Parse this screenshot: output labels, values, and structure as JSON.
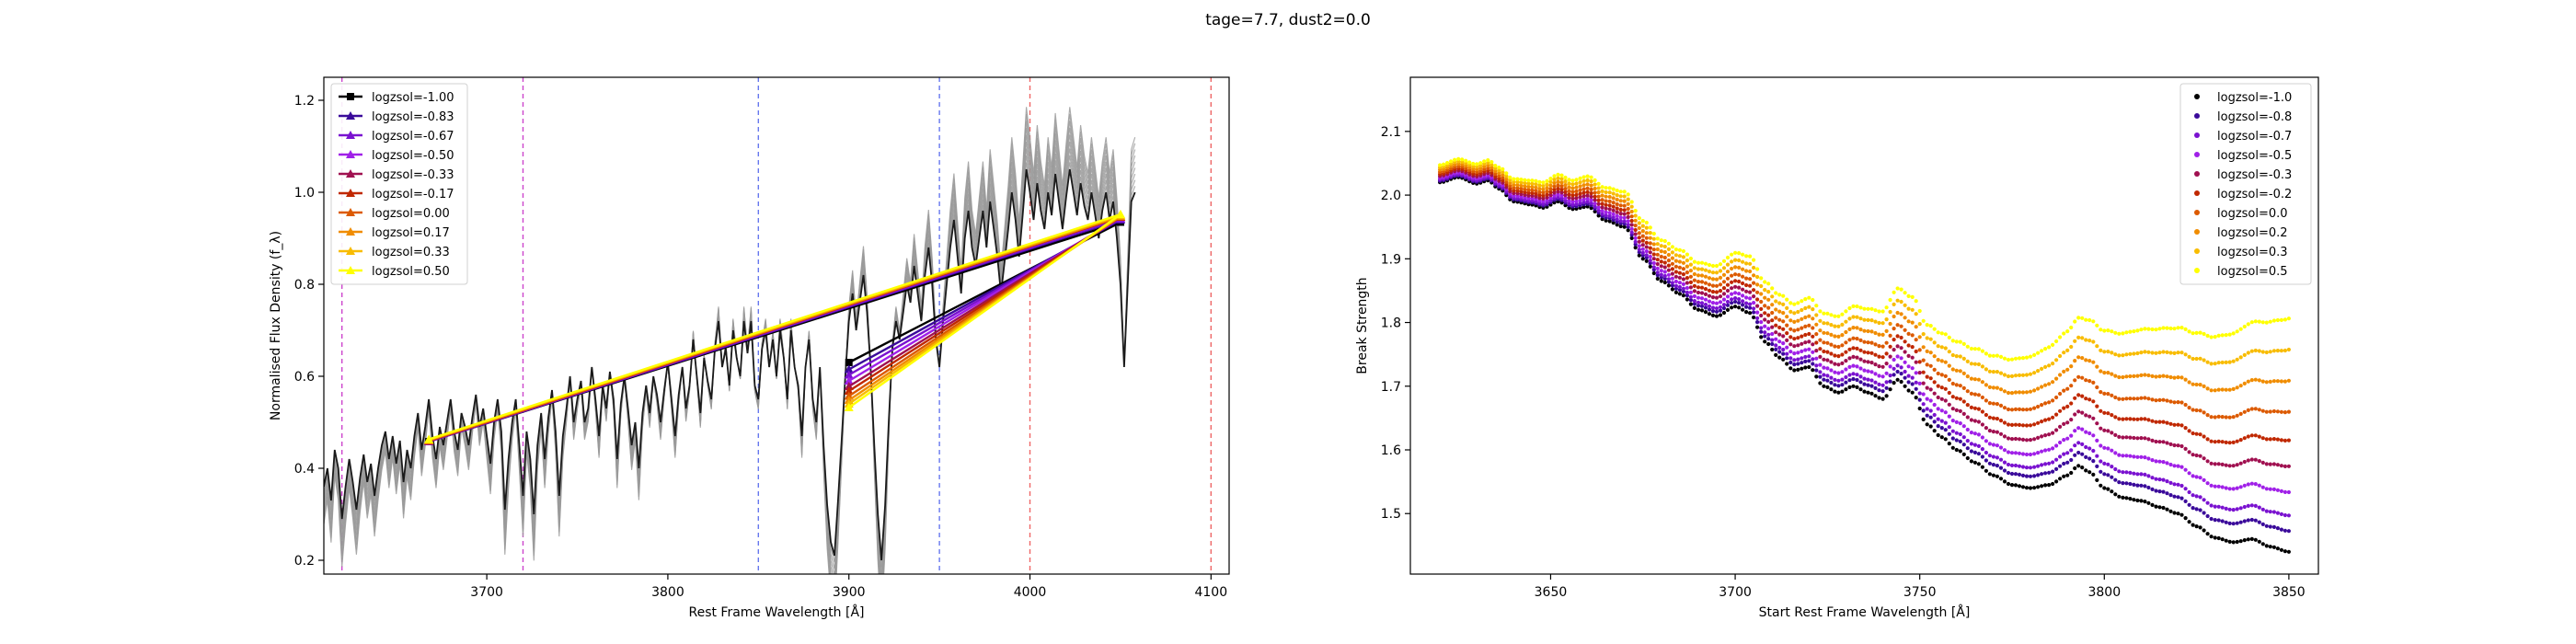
{
  "figure": {
    "suptitle": "tage=7.7, dust2=0.0"
  },
  "chart_data": [
    {
      "type": "line",
      "xlabel": "Rest Frame Wavelength [Å]",
      "ylabel": "Normalised Flux Density (f_λ)",
      "xlim": [
        3610,
        4110
      ],
      "ylim": [
        0.17,
        1.25
      ],
      "xticks": [
        3700,
        3800,
        3900,
        4000,
        4100
      ],
      "yticks": [
        0.2,
        0.4,
        0.6,
        0.8,
        1.0,
        1.2
      ],
      "grid": false,
      "legend_position": "top-left",
      "vlines": [
        {
          "x": 3620,
          "color": "#cc44cc"
        },
        {
          "x": 3720,
          "color": "#cc44cc"
        },
        {
          "x": 3850,
          "color": "#6677ee"
        },
        {
          "x": 3950,
          "color": "#6677ee"
        },
        {
          "x": 4000,
          "color": "#ee6666"
        },
        {
          "x": 4100,
          "color": "#ee6666"
        }
      ],
      "series": [
        {
          "name": "logzsol=-1.00",
          "color": "#000000",
          "marker": "square",
          "segments": [
            [
              [
                3668,
                0.458
              ],
              [
                4050,
                0.935
              ]
            ],
            [
              [
                3900,
                0.63
              ],
              [
                4050,
                0.935
              ]
            ]
          ]
        },
        {
          "name": "logzsol=-0.83",
          "color": "#3a0a9a",
          "marker": "triangle",
          "segments": [
            [
              [
                3668,
                0.458
              ],
              [
                4050,
                0.94
              ]
            ],
            [
              [
                3900,
                0.615
              ],
              [
                4050,
                0.94
              ]
            ]
          ]
        },
        {
          "name": "logzsol=-0.67",
          "color": "#7a12d0",
          "marker": "triangle",
          "segments": [
            [
              [
                3668,
                0.458
              ],
              [
                4050,
                0.942
              ]
            ],
            [
              [
                3900,
                0.603
              ],
              [
                4050,
                0.942
              ]
            ]
          ]
        },
        {
          "name": "logzsol=-0.50",
          "color": "#a020e8",
          "marker": "triangle",
          "segments": [
            [
              [
                3668,
                0.459
              ],
              [
                4050,
                0.945
              ]
            ],
            [
              [
                3900,
                0.59
              ],
              [
                4050,
                0.945
              ]
            ]
          ]
        },
        {
          "name": "logzsol=-0.33",
          "color": "#a01050",
          "marker": "triangle",
          "segments": [
            [
              [
                3668,
                0.459
              ],
              [
                4050,
                0.946
              ]
            ],
            [
              [
                3900,
                0.578
              ],
              [
                4050,
                0.946
              ]
            ]
          ]
        },
        {
          "name": "logzsol=-0.17",
          "color": "#c02800",
          "marker": "triangle",
          "segments": [
            [
              [
                3668,
                0.46
              ],
              [
                4050,
                0.946
              ]
            ],
            [
              [
                3900,
                0.568
              ],
              [
                4050,
                0.946
              ]
            ]
          ]
        },
        {
          "name": "logzsol=0.00",
          "color": "#dc5a00",
          "marker": "triangle",
          "segments": [
            [
              [
                3668,
                0.46
              ],
              [
                4050,
                0.947
              ]
            ],
            [
              [
                3900,
                0.557
              ],
              [
                4050,
                0.947
              ]
            ]
          ]
        },
        {
          "name": "logzsol=0.17",
          "color": "#f08c00",
          "marker": "triangle",
          "segments": [
            [
              [
                3668,
                0.461
              ],
              [
                4050,
                0.948
              ]
            ],
            [
              [
                3900,
                0.548
              ],
              [
                4050,
                0.948
              ]
            ]
          ]
        },
        {
          "name": "logzsol=0.33",
          "color": "#f8bc00",
          "marker": "triangle",
          "segments": [
            [
              [
                3668,
                0.462
              ],
              [
                4050,
                0.95
              ]
            ],
            [
              [
                3900,
                0.54
              ],
              [
                4050,
                0.95
              ]
            ]
          ]
        },
        {
          "name": "logzsol=0.50",
          "color": "#ffff00",
          "marker": "triangle",
          "segments": [
            [
              [
                3668,
                0.463
              ],
              [
                4050,
                0.952
              ]
            ],
            [
              [
                3900,
                0.532
              ],
              [
                4050,
                0.952
              ]
            ]
          ]
        }
      ],
      "spectrum": {
        "x_start": 3610,
        "x_step": 2,
        "y": [
          0.36,
          0.4,
          0.33,
          0.44,
          0.4,
          0.29,
          0.36,
          0.42,
          0.37,
          0.31,
          0.38,
          0.43,
          0.37,
          0.41,
          0.34,
          0.4,
          0.45,
          0.48,
          0.42,
          0.47,
          0.41,
          0.46,
          0.37,
          0.44,
          0.4,
          0.47,
          0.52,
          0.44,
          0.49,
          0.55,
          0.47,
          0.42,
          0.49,
          0.45,
          0.5,
          0.55,
          0.48,
          0.44,
          0.52,
          0.49,
          0.45,
          0.51,
          0.56,
          0.49,
          0.53,
          0.47,
          0.41,
          0.5,
          0.55,
          0.48,
          0.31,
          0.42,
          0.5,
          0.55,
          0.45,
          0.34,
          0.48,
          0.42,
          0.3,
          0.45,
          0.52,
          0.42,
          0.51,
          0.57,
          0.48,
          0.34,
          0.47,
          0.53,
          0.6,
          0.5,
          0.55,
          0.59,
          0.5,
          0.53,
          0.62,
          0.55,
          0.47,
          0.58,
          0.53,
          0.61,
          0.55,
          0.42,
          0.54,
          0.6,
          0.53,
          0.45,
          0.5,
          0.4,
          0.52,
          0.58,
          0.52,
          0.6,
          0.56,
          0.5,
          0.57,
          0.63,
          0.55,
          0.47,
          0.56,
          0.62,
          0.53,
          0.58,
          0.68,
          0.6,
          0.52,
          0.64,
          0.59,
          0.55,
          0.66,
          0.72,
          0.62,
          0.66,
          0.58,
          0.7,
          0.64,
          0.6,
          0.72,
          0.65,
          0.72,
          0.58,
          0.55,
          0.66,
          0.7,
          0.62,
          0.68,
          0.6,
          0.7,
          0.64,
          0.55,
          0.7,
          0.62,
          0.58,
          0.47,
          0.62,
          0.68,
          0.55,
          0.5,
          0.62,
          0.45,
          0.32,
          0.24,
          0.21,
          0.33,
          0.46,
          0.6,
          0.72,
          0.78,
          0.7,
          0.76,
          0.82,
          0.74,
          0.62,
          0.45,
          0.3,
          0.2,
          0.32,
          0.5,
          0.66,
          0.72,
          0.68,
          0.74,
          0.8,
          0.76,
          0.84,
          0.78,
          0.72,
          0.82,
          0.88,
          0.8,
          0.68,
          0.62,
          0.72,
          0.8,
          0.88,
          0.94,
          0.86,
          0.78,
          0.9,
          0.96,
          0.88,
          0.84,
          0.9,
          0.96,
          0.88,
          0.98,
          0.92,
          0.86,
          0.78,
          0.85,
          0.92,
          1.0,
          0.94,
          0.86,
          0.95,
          1.05,
          1.0,
          0.94,
          1.02,
          0.96,
          0.92,
          1.0,
          0.95,
          1.04,
          0.98,
          0.92,
          0.99,
          1.05,
          1.0,
          0.95,
          1.02,
          0.97,
          0.94,
          1.0,
          0.95,
          0.9,
          0.96,
          1.0,
          0.94,
          0.98,
          0.9,
          0.8,
          0.62,
          0.8,
          0.98,
          1.0
        ]
      }
    },
    {
      "type": "scatter",
      "xlabel": "Start Rest Frame Wavelength [Å]",
      "ylabel": "Break Strength",
      "xlim": [
        3612,
        3858
      ],
      "ylim": [
        1.405,
        2.185
      ],
      "xticks": [
        3650,
        3700,
        3750,
        3800,
        3850
      ],
      "yticks": [
        1.5,
        1.6,
        1.7,
        1.8,
        1.9,
        2.0,
        2.1
      ],
      "grid": false,
      "legend_position": "top-right",
      "x_start": 3620,
      "x_end": 3850,
      "x_step": 1,
      "base_curve": {
        "points": [
          [
            3620,
            2.02
          ],
          [
            3625,
            2.028
          ],
          [
            3630,
            2.018
          ],
          [
            3633,
            2.023
          ],
          [
            3636,
            2.01
          ],
          [
            3640,
            1.99
          ],
          [
            3645,
            1.985
          ],
          [
            3648,
            1.98
          ],
          [
            3652,
            1.99
          ],
          [
            3656,
            1.978
          ],
          [
            3660,
            1.982
          ],
          [
            3665,
            1.96
          ],
          [
            3670,
            1.95
          ],
          [
            3675,
            1.9
          ],
          [
            3680,
            1.865
          ],
          [
            3685,
            1.845
          ],
          [
            3690,
            1.82
          ],
          [
            3695,
            1.81
          ],
          [
            3700,
            1.825
          ],
          [
            3704,
            1.815
          ],
          [
            3708,
            1.77
          ],
          [
            3712,
            1.745
          ],
          [
            3716,
            1.725
          ],
          [
            3720,
            1.73
          ],
          [
            3724,
            1.7
          ],
          [
            3728,
            1.69
          ],
          [
            3732,
            1.7
          ],
          [
            3736,
            1.69
          ],
          [
            3740,
            1.68
          ],
          [
            3744,
            1.71
          ],
          [
            3748,
            1.69
          ],
          [
            3752,
            1.64
          ],
          [
            3756,
            1.62
          ],
          [
            3760,
            1.6
          ],
          [
            3765,
            1.58
          ],
          [
            3770,
            1.56
          ],
          [
            3775,
            1.545
          ],
          [
            3780,
            1.54
          ],
          [
            3785,
            1.545
          ],
          [
            3790,
            1.56
          ],
          [
            3793,
            1.575
          ],
          [
            3796,
            1.565
          ],
          [
            3800,
            1.54
          ],
          [
            3805,
            1.525
          ],
          [
            3810,
            1.52
          ],
          [
            3815,
            1.51
          ],
          [
            3820,
            1.5
          ],
          [
            3825,
            1.48
          ],
          [
            3830,
            1.462
          ],
          [
            3835,
            1.455
          ],
          [
            3840,
            1.46
          ],
          [
            3845,
            1.448
          ],
          [
            3850,
            1.44
          ]
        ]
      },
      "series": [
        {
          "name": "logzsol=-1.0",
          "color": "#000000",
          "scale": 0.0
        },
        {
          "name": "logzsol=-0.8",
          "color": "#3a0a9a",
          "scale": 0.08
        },
        {
          "name": "logzsol=-0.7",
          "color": "#7a12d0",
          "scale": 0.14
        },
        {
          "name": "logzsol=-0.5",
          "color": "#a020e8",
          "scale": 0.23
        },
        {
          "name": "logzsol=-0.3",
          "color": "#a01050",
          "scale": 0.33
        },
        {
          "name": "logzsol=-0.2",
          "color": "#c02800",
          "scale": 0.43
        },
        {
          "name": "logzsol=0.0",
          "color": "#dc5a00",
          "scale": 0.54
        },
        {
          "name": "logzsol=0.2",
          "color": "#f08c00",
          "scale": 0.66
        },
        {
          "name": "logzsol=0.3",
          "color": "#f8bc00",
          "scale": 0.78
        },
        {
          "name": "logzsol=0.5",
          "color": "#ffff00",
          "scale": 0.9
        }
      ]
    }
  ]
}
